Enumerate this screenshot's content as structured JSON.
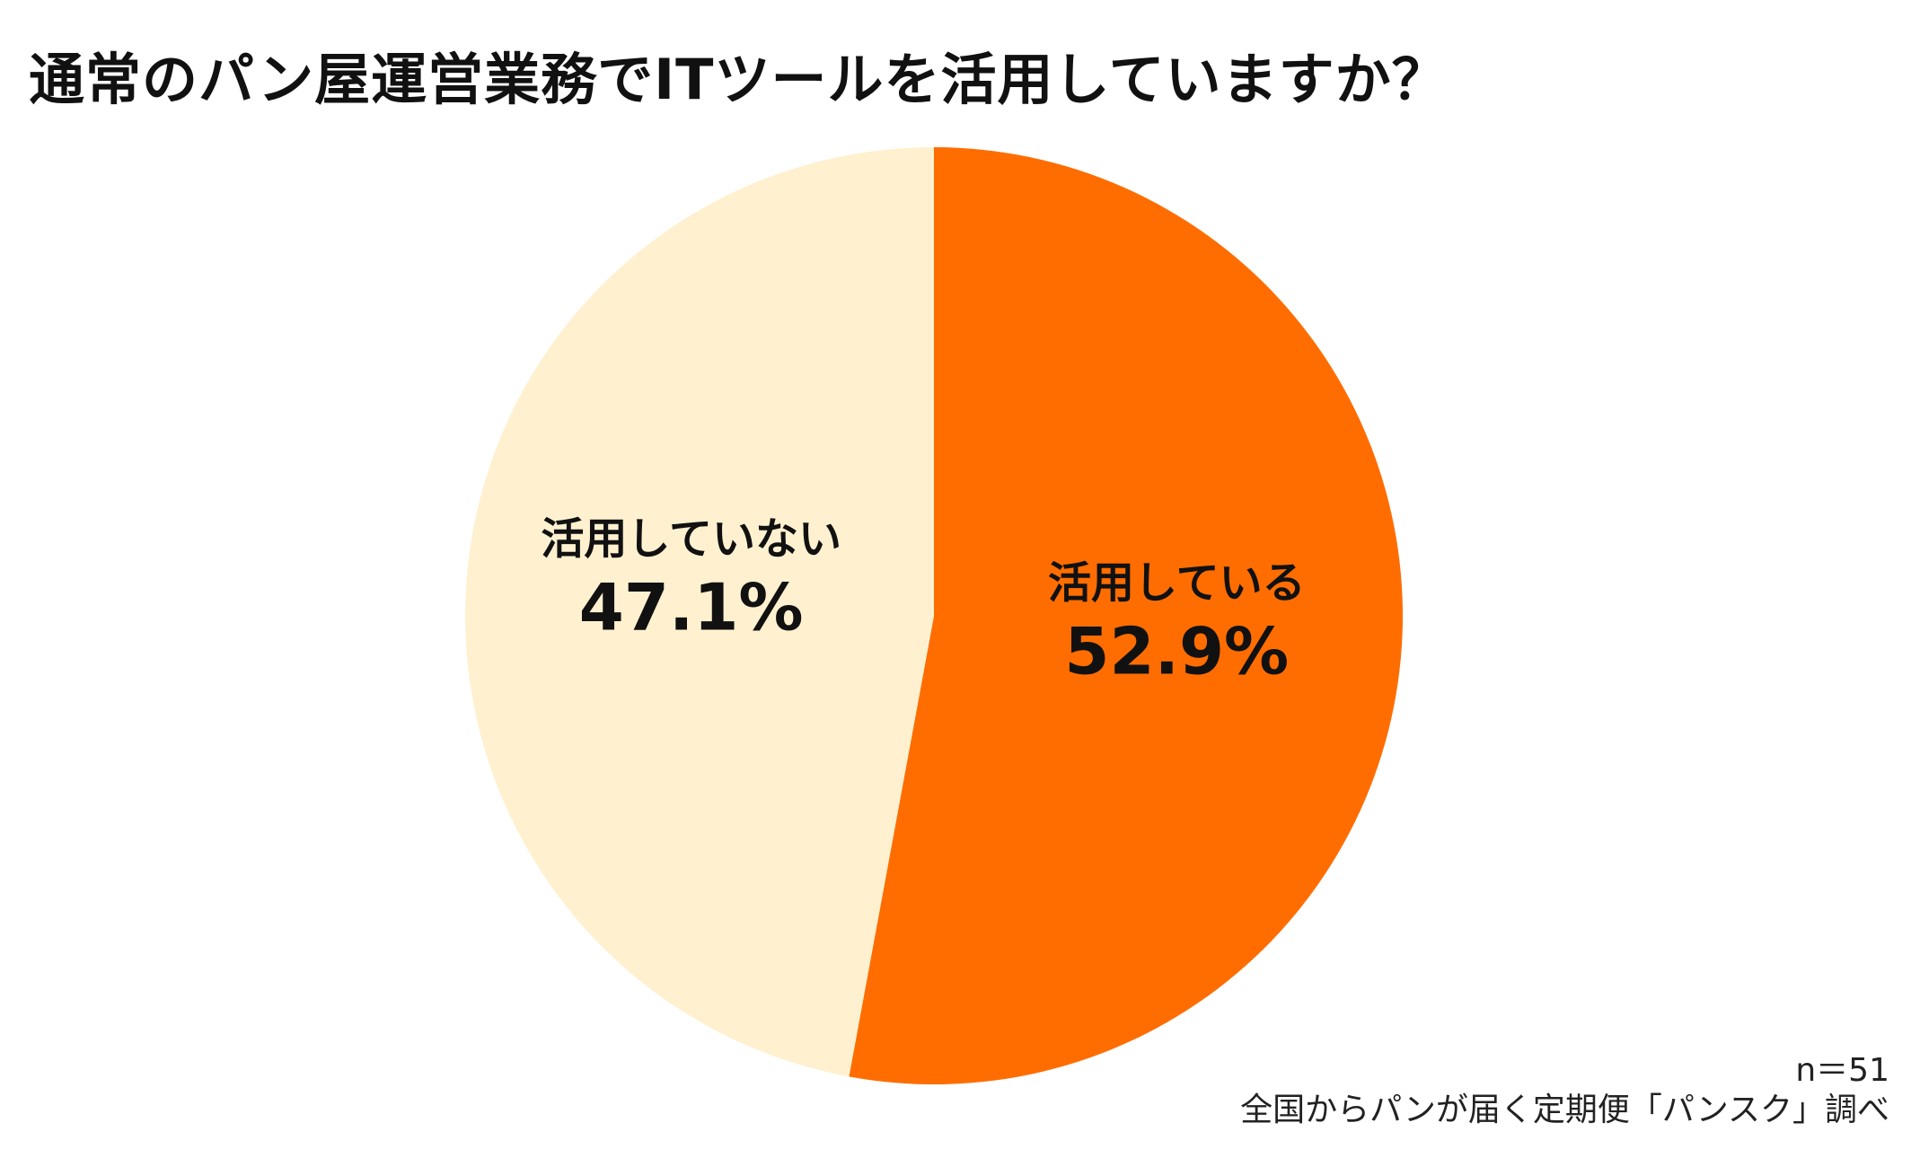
{
  "title": "通常のパン屋運営業務でITツールを活用していますか？",
  "chart_data": {
    "type": "pie",
    "title": "通常のパン屋運営業務でITツールを活用していますか？",
    "slices": [
      {
        "label": "活用している",
        "value": 52.9,
        "display": "52.9%",
        "color": "#ff6d00"
      },
      {
        "label": "活用していない",
        "value": 47.1,
        "display": "47.1%",
        "color": "#fff1cf"
      }
    ],
    "start_angle": "12 o'clock",
    "direction": "clockwise"
  },
  "footnote": {
    "sample": "n＝51",
    "source": "全国からパンが届く定期便「パンスク」調べ"
  }
}
